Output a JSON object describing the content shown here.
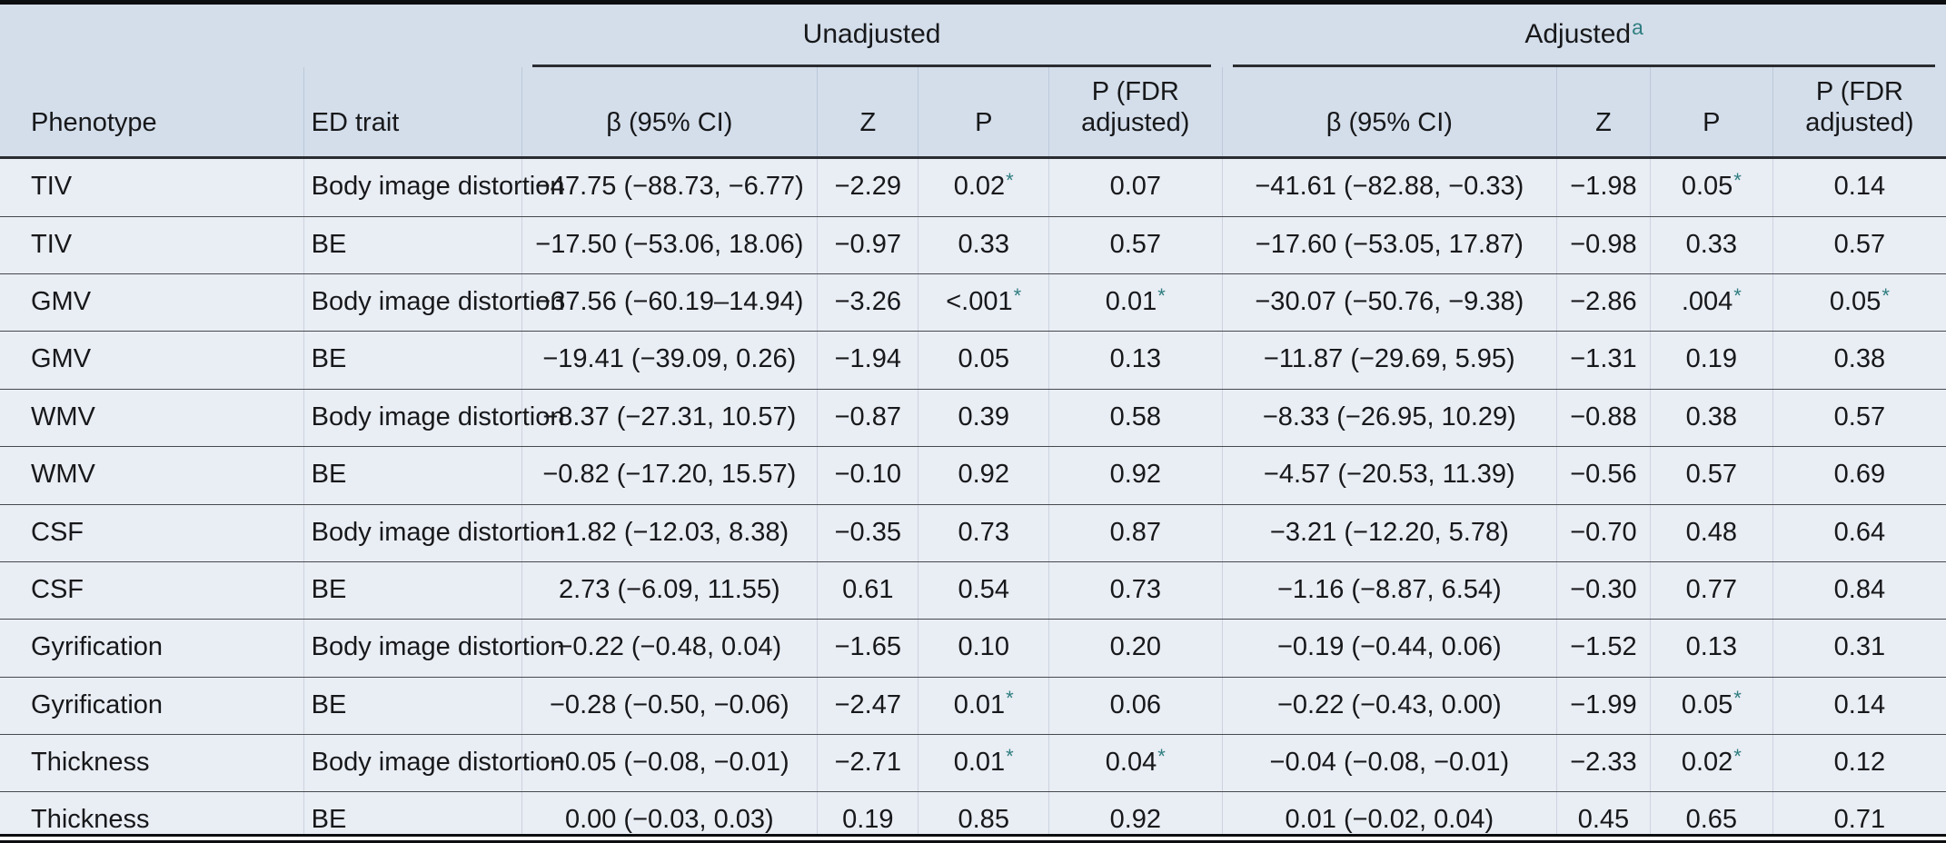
{
  "table": {
    "groups": {
      "unadjusted_label": "Unadjusted",
      "adjusted_label": "Adjusted",
      "adjusted_footnote_mark": "a"
    },
    "columns": {
      "phenotype": "Phenotype",
      "ed_trait": "ED trait"
    },
    "subcolumns": {
      "beta": "β (95% CI)",
      "z": "Z",
      "p": "P",
      "p_fdr": "P (FDR adjusted)"
    },
    "accent_color": "#2f7e80",
    "rows": [
      {
        "phenotype": "TIV",
        "ed_trait": "Body image distortion",
        "unadjusted": {
          "beta_ci": "−47.75 (−88.73, −6.77)",
          "z": "−2.29",
          "p": "0.02*",
          "p_fdr": "0.07"
        },
        "adjusted": {
          "beta_ci": "−41.61 (−82.88, −0.33)",
          "z": "−1.98",
          "p": "0.05*",
          "p_fdr": "0.14"
        }
      },
      {
        "phenotype": "TIV",
        "ed_trait": "BE",
        "unadjusted": {
          "beta_ci": "−17.50 (−53.06, 18.06)",
          "z": "−0.97",
          "p": "0.33",
          "p_fdr": "0.57"
        },
        "adjusted": {
          "beta_ci": "−17.60 (−53.05, 17.87)",
          "z": "−0.98",
          "p": "0.33",
          "p_fdr": "0.57"
        }
      },
      {
        "phenotype": "GMV",
        "ed_trait": "Body image distortion",
        "unadjusted": {
          "beta_ci": "−37.56 (−60.19–14.94)",
          "z": "−3.26",
          "p": "<.001*",
          "p_fdr": "0.01*"
        },
        "adjusted": {
          "beta_ci": "−30.07 (−50.76, −9.38)",
          "z": "−2.86",
          "p": ".004*",
          "p_fdr": "0.05*"
        }
      },
      {
        "phenotype": "GMV",
        "ed_trait": "BE",
        "unadjusted": {
          "beta_ci": "−19.41 (−39.09, 0.26)",
          "z": "−1.94",
          "p": "0.05",
          "p_fdr": "0.13"
        },
        "adjusted": {
          "beta_ci": "−11.87 (−29.69, 5.95)",
          "z": "−1.31",
          "p": "0.19",
          "p_fdr": "0.38"
        }
      },
      {
        "phenotype": "WMV",
        "ed_trait": "Body image distortion",
        "unadjusted": {
          "beta_ci": "−8.37 (−27.31, 10.57)",
          "z": "−0.87",
          "p": "0.39",
          "p_fdr": "0.58"
        },
        "adjusted": {
          "beta_ci": "−8.33 (−26.95, 10.29)",
          "z": "−0.88",
          "p": "0.38",
          "p_fdr": "0.57"
        }
      },
      {
        "phenotype": "WMV",
        "ed_trait": "BE",
        "unadjusted": {
          "beta_ci": "−0.82 (−17.20, 15.57)",
          "z": "−0.10",
          "p": "0.92",
          "p_fdr": "0.92"
        },
        "adjusted": {
          "beta_ci": "−4.57 (−20.53, 11.39)",
          "z": "−0.56",
          "p": "0.57",
          "p_fdr": "0.69"
        }
      },
      {
        "phenotype": "CSF",
        "ed_trait": "Body image distortion",
        "unadjusted": {
          "beta_ci": "−1.82 (−12.03, 8.38)",
          "z": "−0.35",
          "p": "0.73",
          "p_fdr": "0.87"
        },
        "adjusted": {
          "beta_ci": "−3.21 (−12.20, 5.78)",
          "z": "−0.70",
          "p": "0.48",
          "p_fdr": "0.64"
        }
      },
      {
        "phenotype": "CSF",
        "ed_trait": "BE",
        "unadjusted": {
          "beta_ci": "2.73 (−6.09, 11.55)",
          "z": "0.61",
          "p": "0.54",
          "p_fdr": "0.73"
        },
        "adjusted": {
          "beta_ci": "−1.16 (−8.87, 6.54)",
          "z": "−0.30",
          "p": "0.77",
          "p_fdr": "0.84"
        }
      },
      {
        "phenotype": "Gyrification",
        "ed_trait": "Body image distortion",
        "unadjusted": {
          "beta_ci": "−0.22 (−0.48, 0.04)",
          "z": "−1.65",
          "p": "0.10",
          "p_fdr": "0.20"
        },
        "adjusted": {
          "beta_ci": "−0.19 (−0.44, 0.06)",
          "z": "−1.52",
          "p": "0.13",
          "p_fdr": "0.31"
        }
      },
      {
        "phenotype": "Gyrification",
        "ed_trait": "BE",
        "unadjusted": {
          "beta_ci": "−0.28 (−0.50, −0.06)",
          "z": "−2.47",
          "p": "0.01*",
          "p_fdr": "0.06"
        },
        "adjusted": {
          "beta_ci": "−0.22 (−0.43, 0.00)",
          "z": "−1.99",
          "p": "0.05*",
          "p_fdr": "0.14"
        }
      },
      {
        "phenotype": "Thickness",
        "ed_trait": "Body image distortion",
        "unadjusted": {
          "beta_ci": "−0.05 (−0.08, −0.01)",
          "z": "−2.71",
          "p": "0.01*",
          "p_fdr": "0.04*"
        },
        "adjusted": {
          "beta_ci": "−0.04 (−0.08, −0.01)",
          "z": "−2.33",
          "p": "0.02*",
          "p_fdr": "0.12"
        }
      },
      {
        "phenotype": "Thickness",
        "ed_trait": "BE",
        "unadjusted": {
          "beta_ci": "0.00 (−0.03, 0.03)",
          "z": "0.19",
          "p": "0.85",
          "p_fdr": "0.92"
        },
        "adjusted": {
          "beta_ci": "0.01 (−0.02, 0.04)",
          "z": "0.45",
          "p": "0.65",
          "p_fdr": "0.71"
        }
      }
    ]
  }
}
